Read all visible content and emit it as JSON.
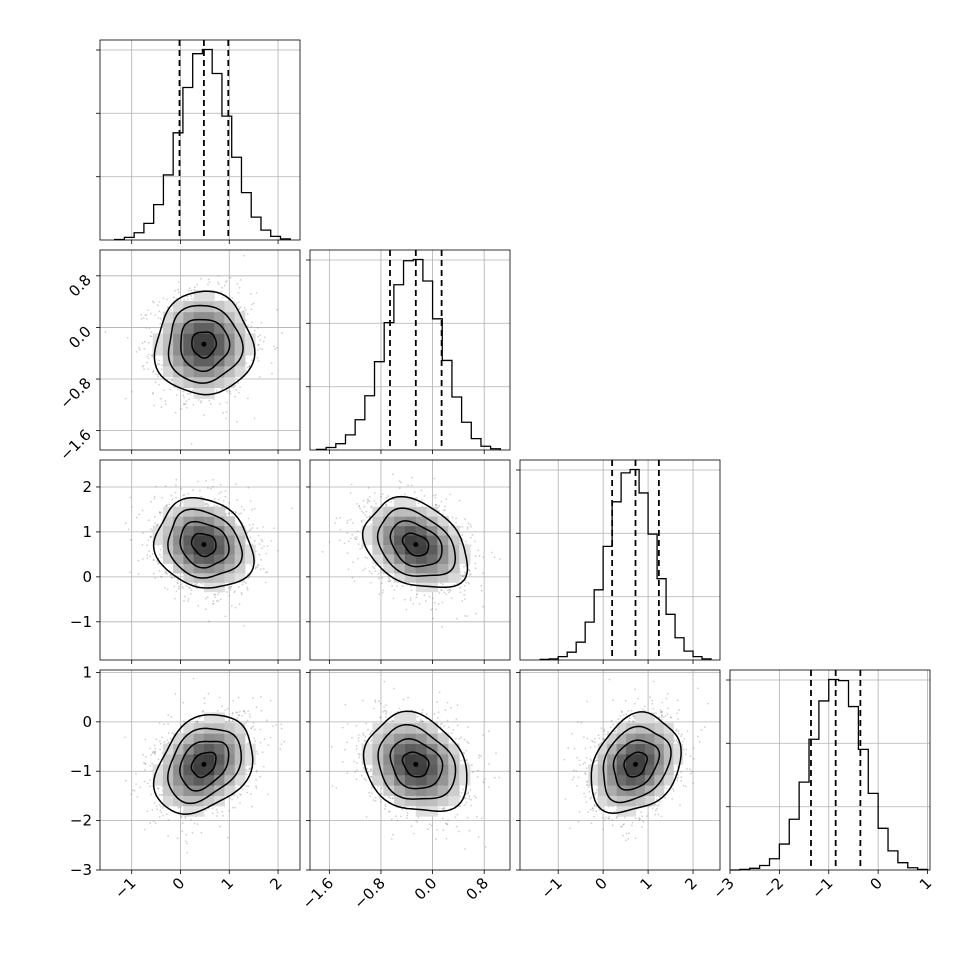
{
  "chart_data": {
    "type": "corner",
    "n_params": 4,
    "colors": {
      "line": "#000000",
      "grid": "#b0b0b0",
      "points": "#7a7a7a"
    },
    "grid": true,
    "ranges": [
      [
        -1.65,
        2.45
      ],
      [
        -1.9,
        1.2
      ],
      [
        -1.85,
        2.6
      ],
      [
        -3.0,
        1.05
      ]
    ],
    "ticks": [
      {
        "values": [
          -1,
          0,
          1,
          2
        ],
        "labels": [
          "−1",
          "0",
          "1",
          "2"
        ]
      },
      {
        "values": [
          -1.6,
          -0.8,
          0.0,
          0.8
        ],
        "labels": [
          "−1.6",
          "−0.8",
          "0.0",
          "0.8"
        ]
      },
      {
        "values": [
          -1,
          0,
          1,
          2
        ],
        "labels": [
          "−1",
          "0",
          "1",
          "2"
        ]
      },
      {
        "values": [
          -3,
          -2,
          -1,
          0,
          1
        ],
        "labels": [
          "−3",
          "−2",
          "−1",
          "0",
          "1"
        ]
      }
    ],
    "means": [
      0.48,
      -0.26,
      0.72,
      -0.86
    ],
    "sigmas": [
      0.5,
      0.4,
      0.5,
      0.5
    ],
    "correlations": [
      {
        "pair": [
          1,
          0
        ],
        "r": 0.0
      },
      {
        "pair": [
          2,
          0
        ],
        "r": -0.15
      },
      {
        "pair": [
          2,
          1
        ],
        "r": -0.3
      },
      {
        "pair": [
          3,
          0
        ],
        "r": 0.3
      },
      {
        "pair": [
          3,
          1
        ],
        "r": -0.2
      },
      {
        "pair": [
          3,
          2
        ],
        "r": 0.25
      }
    ],
    "quantile_lines": [
      [
        -0.02,
        0.48,
        0.98
      ],
      [
        -0.66,
        -0.26,
        0.14
      ],
      [
        0.2,
        0.72,
        1.24
      ],
      [
        -1.36,
        -0.86,
        -0.36
      ]
    ],
    "histograms": [
      {
        "bin_edges": [
          -1.35,
          -1.15,
          -0.95,
          -0.75,
          -0.55,
          -0.35,
          -0.15,
          0.05,
          0.25,
          0.45,
          0.65,
          0.85,
          1.05,
          1.25,
          1.45,
          1.65,
          1.85,
          2.05,
          2.25
        ],
        "counts": [
          1,
          5,
          14,
          32,
          68,
          125,
          206,
          293,
          358,
          366,
          320,
          238,
          159,
          91,
          44,
          19,
          7,
          2
        ]
      },
      {
        "bin_edges": [
          -1.8,
          -1.65,
          -1.5,
          -1.35,
          -1.2,
          -1.05,
          -0.9,
          -0.75,
          -0.6,
          -0.45,
          -0.3,
          -0.15,
          0.0,
          0.15,
          0.3,
          0.45,
          0.6,
          0.75,
          0.9,
          1.05
        ],
        "counts": [
          1,
          4,
          10,
          24,
          48,
          86,
          140,
          202,
          262,
          300,
          302,
          268,
          208,
          142,
          84,
          44,
          18,
          6,
          2
        ]
      },
      {
        "bin_edges": [
          -1.4,
          -1.2,
          -1.0,
          -0.8,
          -0.6,
          -0.4,
          -0.2,
          0.0,
          0.2,
          0.4,
          0.6,
          0.8,
          1.0,
          1.2,
          1.4,
          1.6,
          1.8,
          2.0,
          2.2,
          2.4
        ],
        "counts": [
          1,
          2,
          6,
          14,
          32,
          68,
          126,
          204,
          284,
          336,
          342,
          300,
          226,
          146,
          82,
          40,
          16,
          6,
          2
        ]
      },
      {
        "bin_edges": [
          -3.0,
          -2.8,
          -2.6,
          -2.4,
          -2.2,
          -2.0,
          -1.8,
          -1.6,
          -1.4,
          -1.2,
          -1.0,
          -0.8,
          -0.6,
          -0.4,
          -0.2,
          0.0,
          0.2,
          0.4,
          0.6,
          0.8,
          1.0
        ],
        "counts": [
          0,
          1,
          3,
          8,
          20,
          46,
          90,
          156,
          232,
          300,
          338,
          336,
          290,
          214,
          136,
          74,
          34,
          13,
          4,
          1
        ]
      }
    ],
    "contour_levels": [
      0.5,
      1.0,
      1.5,
      2.0
    ],
    "n_scatter_points": 1600,
    "density_grid_bins": 10
  }
}
